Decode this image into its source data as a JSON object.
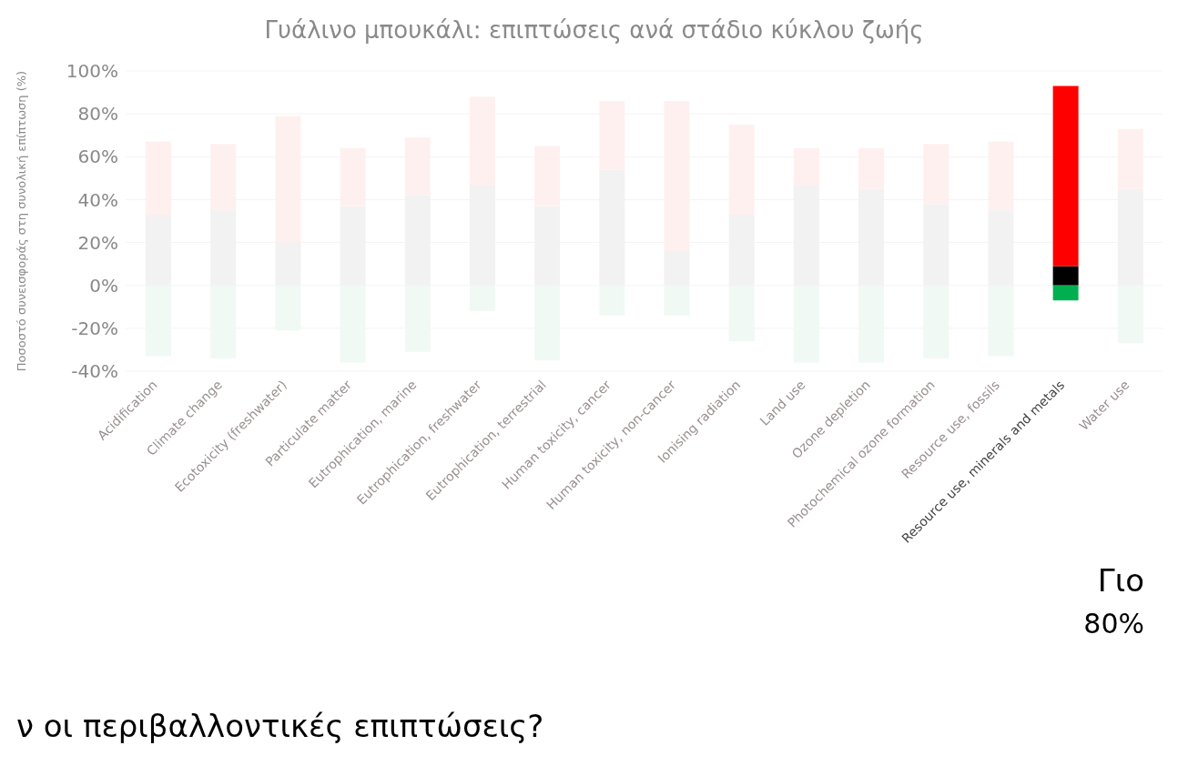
{
  "chart_data": {
    "type": "bar",
    "stacked": true,
    "title": "Γυάλινο μπουκάλι: επιπτώσεις ανά στάδιο κύκλου ζωής",
    "ylabel": "Ποσοστό συνεισφοράς στη συνολική επίπτωση (%)",
    "categories": [
      "Acidification",
      "Climate change",
      "Ecotoxicity (freshwater)",
      "Particulate matter",
      "Eutrophication, marine",
      "Eutrophication, freshwater",
      "Eutrophication, terrestrial",
      "Human toxicity, cancer",
      "Human toxicity, non-cancer",
      "Ionising radiation",
      "Land use",
      "Ozone depletion",
      "Photochemical ozone formation",
      "Resource use, fossils",
      "Resource use, minerals and metals",
      "Water use"
    ],
    "series": [
      {
        "colors": [
          "#f2f2f2",
          "#f2f2f2",
          "#f2f2f2",
          "#f2f2f2",
          "#f2f2f2",
          "#f2f2f2",
          "#f2f2f2",
          "#f2f2f2",
          "#f2f2f2",
          "#f2f2f2",
          "#f2f2f2",
          "#f2f2f2",
          "#f2f2f2",
          "#f2f2f2",
          "#000000",
          "#f2f2f2"
        ],
        "values": [
          33,
          35,
          20,
          37,
          42,
          47,
          37,
          54,
          16,
          33,
          47,
          45,
          38,
          35,
          9,
          45
        ]
      },
      {
        "colors": [
          "#fff0f0",
          "#fff0f0",
          "#fff0f0",
          "#fff0f0",
          "#fff0f0",
          "#fff0f0",
          "#fff0f0",
          "#fff0f0",
          "#fff0f0",
          "#fff0f0",
          "#fff0f0",
          "#fff0f0",
          "#fff0f0",
          "#fff0f0",
          "#ff0000",
          "#fff0f0"
        ],
        "values": [
          34,
          31,
          59,
          27,
          27,
          41,
          28,
          32,
          70,
          42,
          17,
          19,
          28,
          32,
          84,
          28
        ]
      },
      {
        "colors": [
          "#f0f9f4",
          "#f0f9f4",
          "#f0f9f4",
          "#f0f9f4",
          "#f0f9f4",
          "#f0f9f4",
          "#f0f9f4",
          "#f0f9f4",
          "#f0f9f4",
          "#f0f9f4",
          "#f0f9f4",
          "#f0f9f4",
          "#f0f9f4",
          "#f0f9f4",
          "#00b050",
          "#f0f9f4"
        ],
        "values": [
          -33,
          -34,
          -21,
          -36,
          -31,
          -12,
          -35,
          -14,
          -14,
          -26,
          -36,
          -36,
          -34,
          -33,
          -7,
          -27
        ]
      }
    ],
    "ylim": [
      -40,
      100
    ],
    "yticks": [
      {
        "value": -40,
        "label": "-40%"
      },
      {
        "value": -20,
        "label": "-20%"
      },
      {
        "value": 0,
        "label": "0%"
      },
      {
        "value": 20,
        "label": "20%"
      },
      {
        "value": 40,
        "label": "40%"
      },
      {
        "value": 60,
        "label": "60%"
      },
      {
        "value": 80,
        "label": "80%"
      },
      {
        "value": 100,
        "label": "100%"
      }
    ],
    "grid": "y",
    "annotations": [
      "Γιο",
      "80%",
      "ν οι περιβαλλοντικές επιπτώσεις?"
    ]
  }
}
